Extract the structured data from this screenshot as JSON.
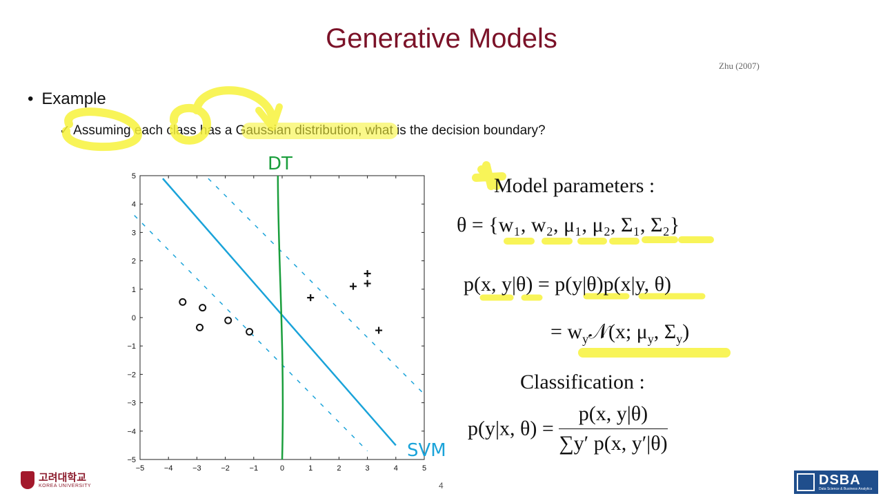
{
  "slide": {
    "title": "Generative Models",
    "citation": "Zhu (2007)",
    "bullet": "Example",
    "sub_bullet": "Assuming each class has a Gaussian distribution, what is the decision boundary?",
    "page_number": "4"
  },
  "math": {
    "model_params_label": "Model parameters :",
    "theta_lhs": "θ = {",
    "theta_items": [
      "w₁",
      "w₂",
      "μ₁",
      "μ₂",
      "Σ₁",
      "Σ₂"
    ],
    "joint_lhs": "p(x, y|θ) = p(y|θ)p(x|y, θ)",
    "joint_rhs": "= w",
    "joint_rhs_sub": "y",
    "joint_rhs_rest": "𝒩(x; μ",
    "joint_rhs_sub2": "y",
    "joint_rhs_rest2": ", Σ",
    "joint_rhs_sub3": "y",
    "joint_rhs_end": ")",
    "classification_label": "Classification :",
    "class_lhs": "p(y|x, θ) =",
    "class_num": "p(x, y|θ)",
    "class_den": "∑y′ p(x, y′|θ)"
  },
  "annotations": {
    "dt_label": "DT",
    "svm_label": "SVM"
  },
  "logos": {
    "ku_korean": "고려대학교",
    "ku_english": "KOREA UNIVERSITY",
    "dsba_main": "DSBA",
    "dsba_sub": "Data Science & Business Analytics"
  },
  "colors": {
    "title": "#7b1228",
    "highlight": "#f7f23a",
    "svm_line": "#1aa3d9",
    "dt_line": "#1a9e3c"
  },
  "chart_data": {
    "type": "scatter",
    "xlim": [
      -5,
      5
    ],
    "ylim": [
      -5,
      5
    ],
    "x_ticks": [
      -5,
      -4,
      -3,
      -2,
      -1,
      0,
      1,
      2,
      3,
      4,
      5
    ],
    "y_ticks": [
      -5,
      -4,
      -3,
      -2,
      -1,
      0,
      1,
      2,
      3,
      4,
      5
    ],
    "series": [
      {
        "marker": "o",
        "points": [
          [
            -3.5,
            0.55
          ],
          [
            -2.8,
            0.35
          ],
          [
            -2.9,
            -0.35
          ],
          [
            -1.9,
            -0.1
          ],
          [
            -1.15,
            -0.5
          ]
        ]
      },
      {
        "marker": "+",
        "points": [
          [
            1.0,
            0.7
          ],
          [
            2.5,
            1.1
          ],
          [
            3.0,
            1.2
          ],
          [
            3.0,
            1.55
          ],
          [
            3.4,
            -0.45
          ]
        ]
      }
    ],
    "svm_boundary": [
      [
        -4.2,
        4.9
      ],
      [
        4.0,
        -4.5
      ]
    ],
    "dt_boundary": [
      [
        -0.15,
        5.0
      ],
      [
        0.0,
        -5.0
      ]
    ]
  }
}
